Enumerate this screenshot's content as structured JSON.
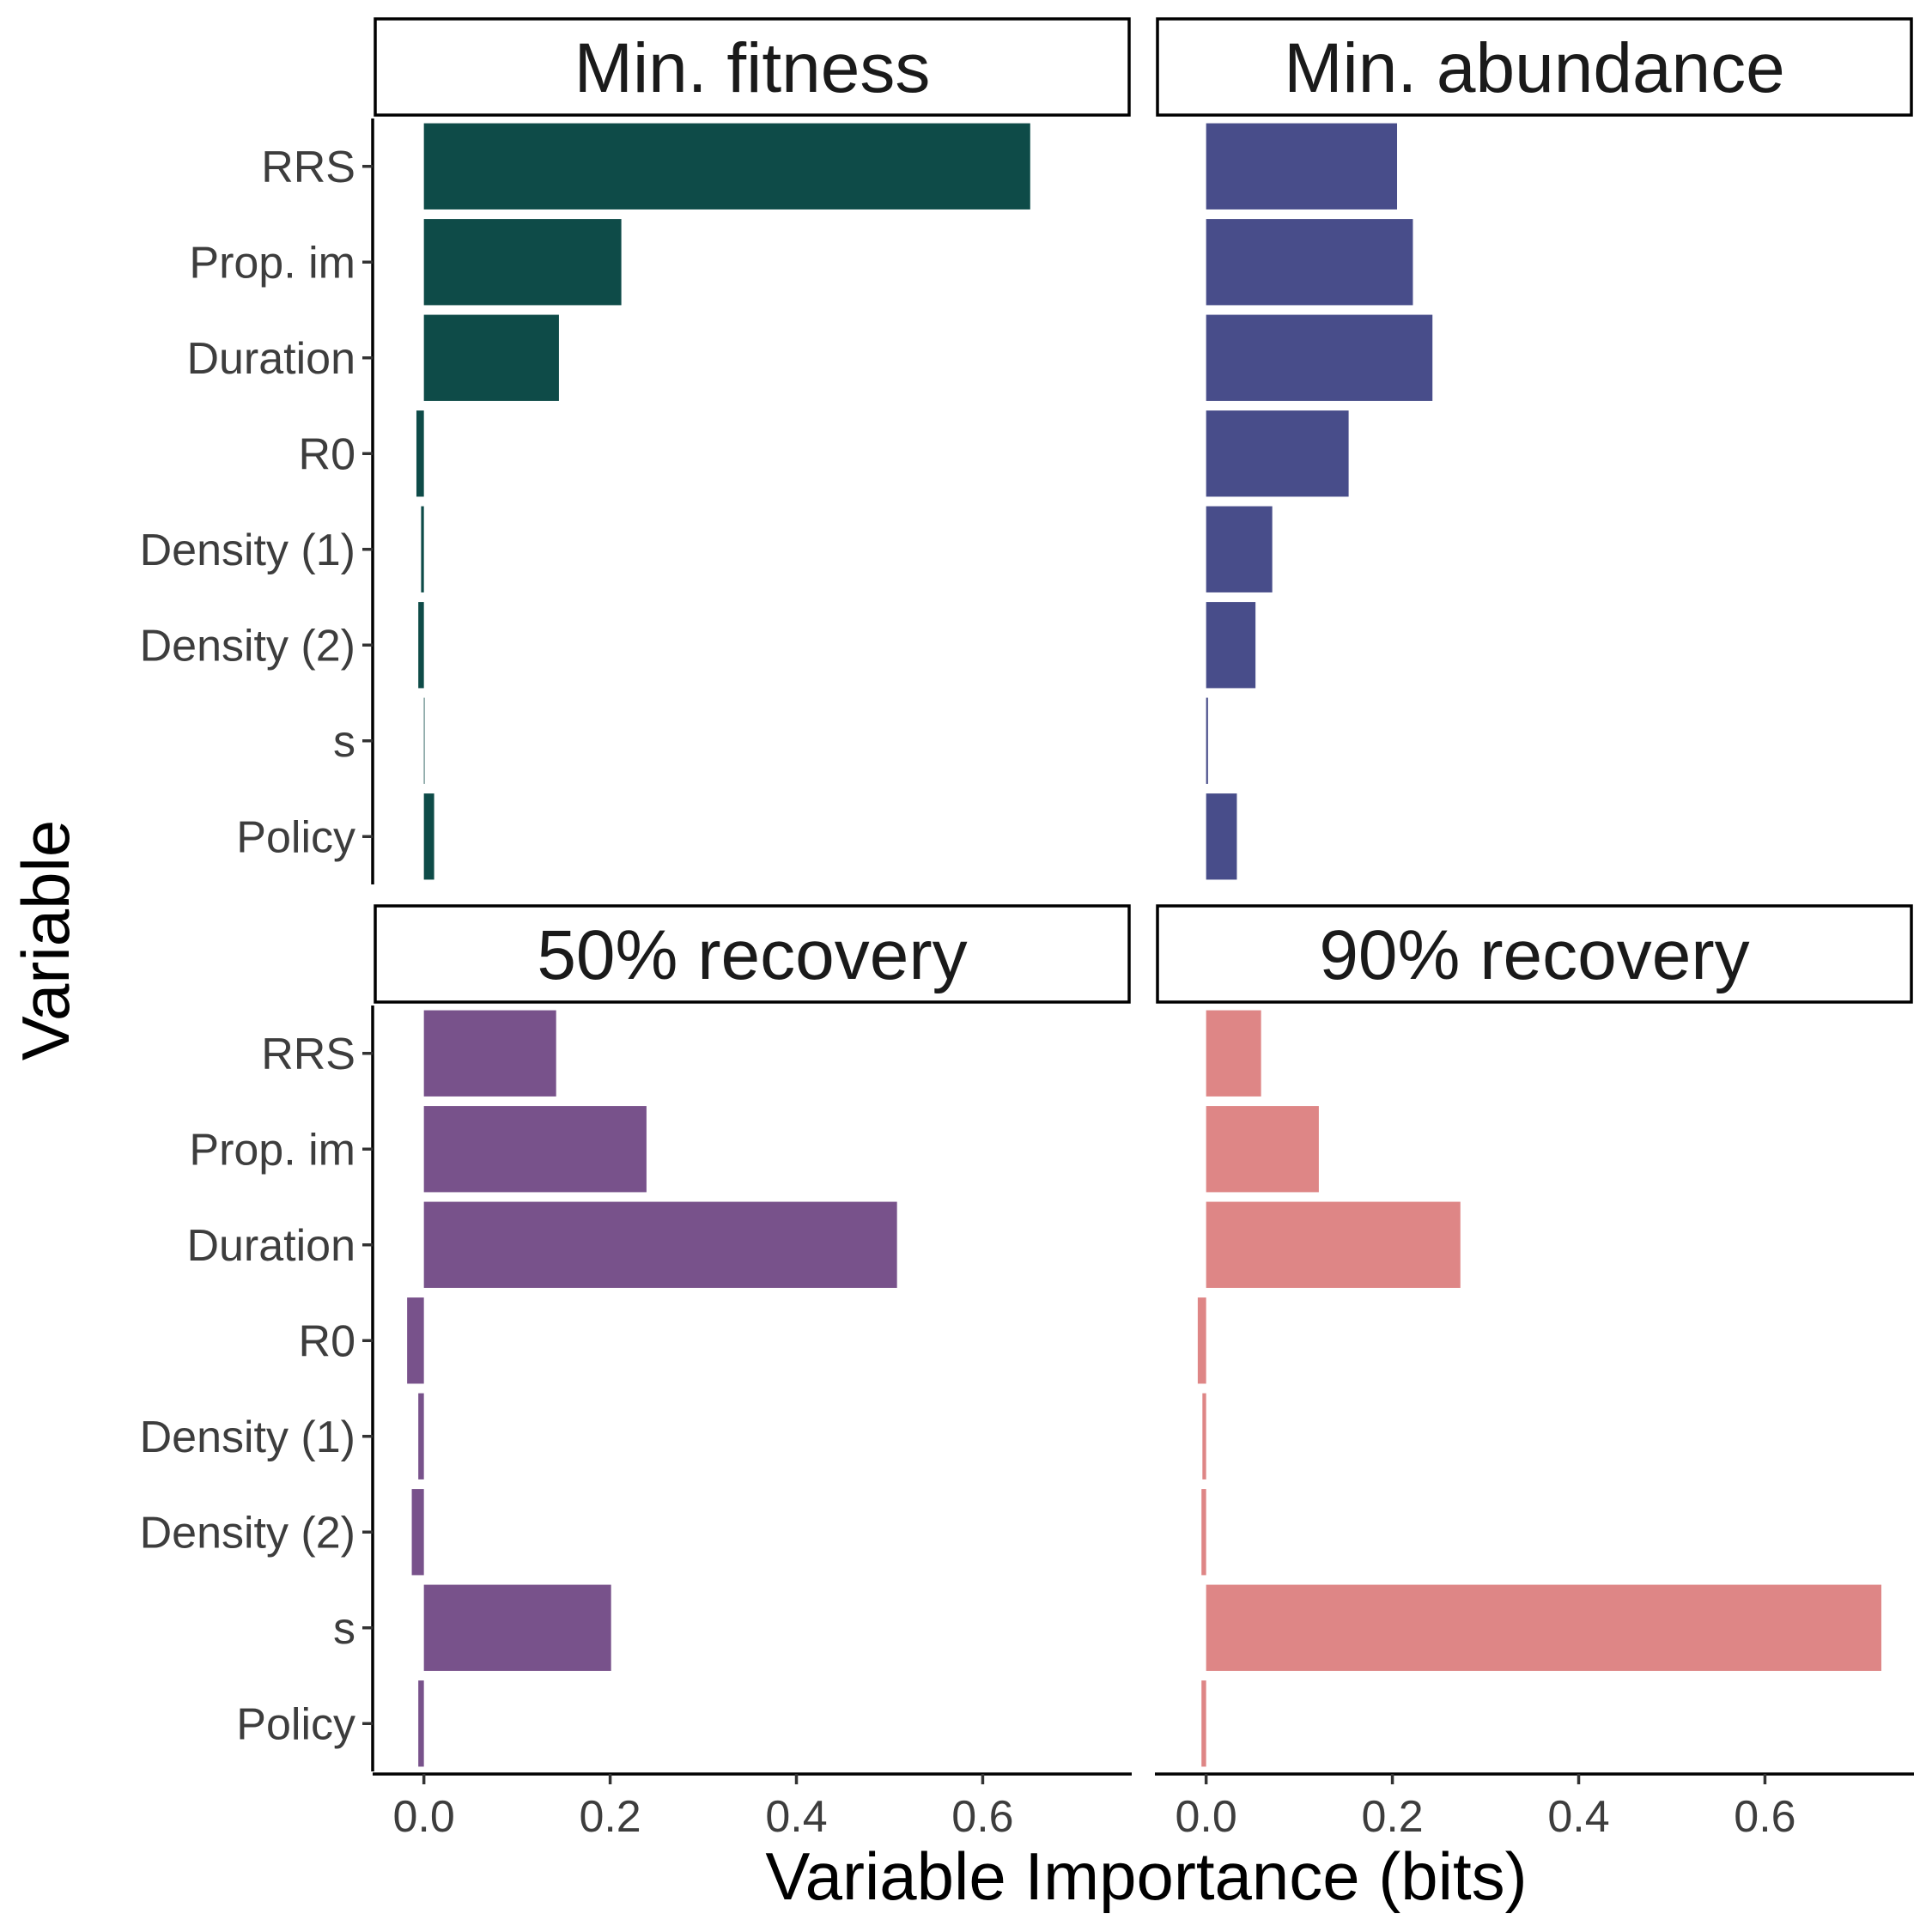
{
  "chart_data": {
    "type": "bar",
    "orientation": "horizontal",
    "xlabel": "Variable Importance (bits)",
    "ylabel": "Variable",
    "categories": [
      "RRS",
      "Prop. im",
      "Duration",
      "R0",
      "Density (1)",
      "Density (2)",
      "s",
      "Policy"
    ],
    "xlim": [
      -0.055,
      0.76
    ],
    "xticks": [
      0.0,
      0.2,
      0.4,
      0.6
    ],
    "xtick_labels": [
      "0.0",
      "0.2",
      "0.4",
      "0.6"
    ],
    "grid": false,
    "panels": [
      {
        "name": "Min. fitness",
        "color": "#0e4b48",
        "values": [
          0.651,
          0.212,
          0.145,
          -0.008,
          -0.003,
          -0.006,
          0.0,
          0.011
        ]
      },
      {
        "name": "Min. abundance",
        "color": "#484d8a",
        "values": [
          0.205,
          0.222,
          0.243,
          0.153,
          0.071,
          0.053,
          0.002,
          0.033
        ]
      },
      {
        "name": "50% recovery",
        "color": "#78528b",
        "values": [
          0.142,
          0.239,
          0.508,
          -0.018,
          -0.006,
          -0.013,
          0.201,
          -0.006
        ]
      },
      {
        "name": "90% recovery",
        "color": "#de8686",
        "values": [
          0.059,
          0.121,
          0.273,
          -0.009,
          -0.004,
          -0.005,
          0.725,
          -0.005
        ]
      }
    ]
  }
}
